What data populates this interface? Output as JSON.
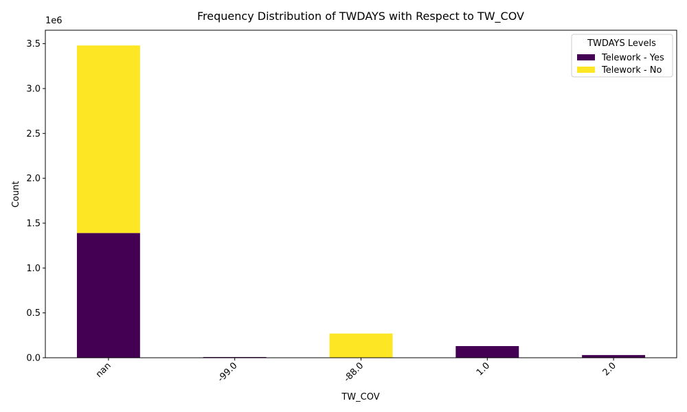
{
  "chart_data": {
    "type": "bar",
    "stacked": true,
    "title": "Frequency Distribution of TWDAYS with Respect to TW_COV",
    "xlabel": "TW_COV",
    "ylabel": "Count",
    "y_multiplier_label": "1e6",
    "categories": [
      "nan",
      "-99.0",
      "-88.0",
      "1.0",
      "2.0"
    ],
    "series": [
      {
        "name": "Telework - Yes",
        "color": "#440154",
        "values": [
          1390000,
          8000,
          0,
          130000,
          30000
        ]
      },
      {
        "name": "Telework - No",
        "color": "#fde725",
        "values": [
          2090000,
          0,
          270000,
          0,
          0
        ]
      }
    ],
    "ylim": [
      0,
      3650000
    ],
    "yticks": [
      0,
      500000,
      1000000,
      1500000,
      2000000,
      2500000,
      3000000,
      3500000
    ],
    "ytick_labels": [
      "0.0",
      "0.5",
      "1.0",
      "1.5",
      "2.0",
      "2.5",
      "3.0",
      "3.5"
    ],
    "xtick_rotation": 45,
    "grid": false,
    "legend": {
      "title": "TWDAYS Levels",
      "placement": "top-right"
    }
  }
}
